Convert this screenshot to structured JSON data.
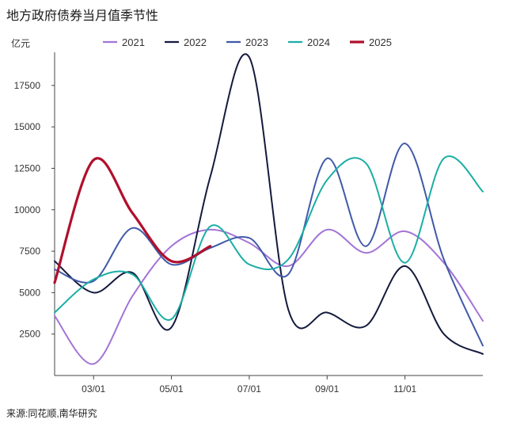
{
  "title": "地方政府债券当月值季节性",
  "source": "来源:同花顺,南华研究",
  "chart_data": {
    "type": "line",
    "title": "地方政府债券当月值季节性",
    "ylabel": "亿元",
    "xlabel": "",
    "ylim": [
      0,
      19500
    ],
    "xlim": [
      1,
      12
    ],
    "yticks": [
      2500,
      5000,
      7500,
      10000,
      12500,
      15000,
      17500
    ],
    "xticks": [
      {
        "value": 2,
        "label": "03/01"
      },
      {
        "value": 4,
        "label": "05/01"
      },
      {
        "value": 6,
        "label": "07/01"
      },
      {
        "value": 8,
        "label": "09/01"
      },
      {
        "value": 10,
        "label": "11/01"
      }
    ],
    "legend_position": "top",
    "grid": false,
    "series": [
      {
        "name": "2021",
        "color": "#a374d6",
        "x": [
          1,
          2,
          3,
          4,
          5,
          6,
          7,
          8,
          9,
          10,
          11,
          12
        ],
        "values": [
          3600,
          700,
          4800,
          7800,
          8800,
          8000,
          6600,
          8800,
          7400,
          8700,
          6800,
          3300
        ]
      },
      {
        "name": "2022",
        "color": "#141a3d",
        "x": [
          1,
          2,
          3,
          4,
          5,
          6,
          7,
          8,
          9,
          10,
          11,
          12
        ],
        "values": [
          6900,
          5000,
          6200,
          2900,
          12000,
          19200,
          4000,
          3800,
          3000,
          6600,
          2500,
          1300
        ]
      },
      {
        "name": "2023",
        "color": "#3f59a8",
        "x": [
          1,
          2,
          3,
          4,
          5,
          6,
          7,
          8,
          9,
          10,
          11,
          12
        ],
        "values": [
          6400,
          5700,
          8900,
          6700,
          7700,
          8300,
          6100,
          13100,
          7800,
          14000,
          7000,
          1800
        ]
      },
      {
        "name": "2024",
        "color": "#1aaea5",
        "x": [
          1,
          2,
          3,
          4,
          5,
          6,
          7,
          8,
          9,
          10,
          11,
          12
        ],
        "values": [
          3800,
          5800,
          6100,
          3400,
          9000,
          6700,
          7000,
          11800,
          12800,
          6800,
          13100,
          11100
        ]
      },
      {
        "name": "2025",
        "color": "#b0102c",
        "x": [
          1,
          2,
          3,
          4,
          5
        ],
        "values": [
          5600,
          13000,
          9800,
          6900,
          7800
        ]
      }
    ]
  }
}
